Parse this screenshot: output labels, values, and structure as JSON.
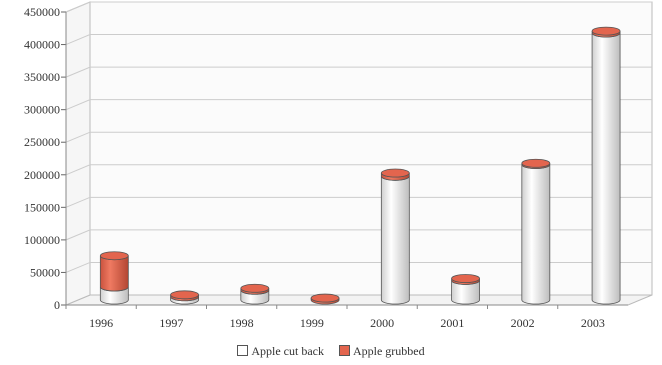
{
  "chart_data": {
    "type": "bar",
    "stacked": true,
    "style": "3d-cylinder",
    "categories": [
      "1996",
      "1997",
      "1998",
      "1999",
      "2000",
      "2001",
      "2002",
      "2003"
    ],
    "series": [
      {
        "name": "Apple cut back",
        "color": "#ffffff",
        "values": [
          20000,
          5000,
          15000,
          0,
          190000,
          30000,
          208000,
          410000
        ]
      },
      {
        "name": "Apple grubbed",
        "color": "#e3654e",
        "values": [
          48000,
          3000,
          3000,
          3000,
          5000,
          3000,
          2000,
          3000
        ]
      }
    ],
    "title": "",
    "xlabel": "",
    "ylabel": "",
    "ylim": [
      0,
      450000
    ],
    "yticks": [
      "0",
      "50000",
      "100000",
      "150000",
      "200000",
      "250000",
      "300000",
      "350000",
      "400000",
      "450000"
    ],
    "grid": true,
    "legend_position": "bottom"
  }
}
